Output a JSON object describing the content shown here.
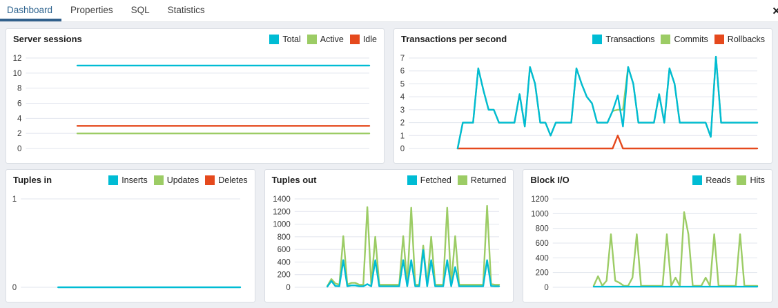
{
  "tabs": {
    "items": [
      {
        "label": "Dashboard",
        "active": true
      },
      {
        "label": "Properties",
        "active": false
      },
      {
        "label": "SQL",
        "active": false
      },
      {
        "label": "Statistics",
        "active": false
      }
    ],
    "close_icon": "✕"
  },
  "colors": {
    "cyan": "#00bcd4",
    "green": "#9ccc65",
    "orange": "#e5491d",
    "active_tab": "#31608c",
    "gridline": "#e1e4ed",
    "panel_bg": "#ffffff",
    "page_bg": "#edeff3"
  },
  "panels": [
    {
      "title": "Server sessions",
      "legend": [
        {
          "label": "Total",
          "color": "cyan"
        },
        {
          "label": "Active",
          "color": "green"
        },
        {
          "label": "Idle",
          "color": "orange"
        }
      ]
    },
    {
      "title": "Transactions per second",
      "legend": [
        {
          "label": "Transactions",
          "color": "cyan"
        },
        {
          "label": "Commits",
          "color": "green"
        },
        {
          "label": "Rollbacks",
          "color": "orange"
        }
      ]
    },
    {
      "title": "Tuples in",
      "legend": [
        {
          "label": "Inserts",
          "color": "cyan"
        },
        {
          "label": "Updates",
          "color": "green"
        },
        {
          "label": "Deletes",
          "color": "orange"
        }
      ]
    },
    {
      "title": "Tuples out",
      "legend": [
        {
          "label": "Fetched",
          "color": "cyan"
        },
        {
          "label": "Returned",
          "color": "green"
        }
      ]
    },
    {
      "title": "Block I/O",
      "legend": [
        {
          "label": "Reads",
          "color": "cyan"
        },
        {
          "label": "Hits",
          "color": "green"
        }
      ]
    }
  ],
  "chart_data": [
    {
      "type": "line",
      "title": "Server sessions",
      "ylim": [
        0,
        12
      ],
      "yticks": [
        12,
        10,
        8,
        6,
        4,
        2,
        0
      ],
      "x_start_frac": 0.15,
      "grid": true,
      "legend_position": "top-right",
      "series": [
        {
          "name": "Total",
          "color": "cyan",
          "values": [
            11,
            11
          ]
        },
        {
          "name": "Active",
          "color": "green",
          "values": [
            2,
            2
          ]
        },
        {
          "name": "Idle",
          "color": "orange",
          "values": [
            3,
            3
          ]
        }
      ]
    },
    {
      "type": "line",
      "title": "Transactions per second",
      "ylim": [
        0,
        7
      ],
      "yticks": [
        7,
        6,
        5,
        4,
        3,
        2,
        1,
        0
      ],
      "x_start_frac": 0.14,
      "grid": true,
      "legend_position": "top-right",
      "series": [
        {
          "name": "Commits",
          "color": "green",
          "values": [
            0,
            2,
            2,
            2,
            6.2,
            4.5,
            3,
            3,
            2,
            2,
            2,
            2,
            4.2,
            1.7,
            6.3,
            5,
            2,
            2,
            1,
            2,
            2,
            2,
            2,
            6.2,
            5,
            4,
            3.5,
            2,
            2,
            2,
            2.9,
            3,
            3,
            6.3,
            5,
            2,
            2,
            2,
            2,
            4.2,
            2,
            6.2,
            5,
            2,
            2,
            2,
            2,
            2,
            2,
            0.9,
            7.1,
            2,
            2,
            2,
            2,
            2,
            2,
            2,
            2
          ]
        },
        {
          "name": "Rollbacks",
          "color": "orange",
          "values": [
            0,
            0,
            0,
            0,
            0,
            0,
            0,
            0,
            0,
            0,
            0,
            0,
            0,
            0,
            0,
            0,
            0,
            0,
            0,
            0,
            0,
            0,
            0,
            0,
            0,
            0,
            0,
            0,
            0,
            0,
            0,
            1,
            0,
            0,
            0,
            0,
            0,
            0,
            0,
            0,
            0,
            0,
            0,
            0,
            0,
            0,
            0,
            0,
            0,
            0,
            0,
            0,
            0,
            0,
            0,
            0,
            0,
            0,
            0
          ]
        },
        {
          "name": "Transactions",
          "color": "cyan",
          "values": [
            0,
            2,
            2,
            2,
            6.2,
            4.5,
            3,
            3,
            2,
            2,
            2,
            2,
            4.2,
            1.7,
            6.3,
            5,
            2,
            2,
            1,
            2,
            2,
            2,
            2,
            6.2,
            5,
            4,
            3.5,
            2,
            2,
            2,
            2.9,
            4.1,
            1.7,
            6.3,
            5,
            2,
            2,
            2,
            2,
            4.2,
            2,
            6.2,
            5,
            2,
            2,
            2,
            2,
            2,
            2,
            0.9,
            7.1,
            2,
            2,
            2,
            2,
            2,
            2,
            2,
            2
          ]
        }
      ]
    },
    {
      "type": "line",
      "title": "Tuples in",
      "ylim": [
        0,
        1
      ],
      "yticks": [
        1,
        0
      ],
      "x_start_frac": 0.17,
      "grid": true,
      "legend_position": "top-right",
      "series": [
        {
          "name": "Updates",
          "color": "green",
          "values": []
        },
        {
          "name": "Deletes",
          "color": "orange",
          "values": []
        },
        {
          "name": "Inserts",
          "color": "cyan",
          "values": [
            0,
            0
          ]
        }
      ]
    },
    {
      "type": "line",
      "title": "Tuples out",
      "ylim": [
        0,
        1400
      ],
      "yticks": [
        1400,
        1200,
        1000,
        800,
        600,
        400,
        200,
        0
      ],
      "x_start_frac": 0.16,
      "grid": true,
      "legend_position": "top-right",
      "series": [
        {
          "name": "Returned",
          "color": "green",
          "values": [
            20,
            130,
            60,
            40,
            810,
            40,
            70,
            70,
            40,
            40,
            1270,
            40,
            800,
            40,
            40,
            40,
            40,
            40,
            40,
            810,
            40,
            1260,
            40,
            40,
            660,
            40,
            800,
            40,
            40,
            40,
            1260,
            40,
            810,
            40,
            40,
            40,
            40,
            40,
            40,
            40,
            1290,
            50,
            40,
            40
          ]
        },
        {
          "name": "Fetched",
          "color": "cyan",
          "values": [
            10,
            100,
            20,
            15,
            430,
            15,
            30,
            30,
            15,
            15,
            50,
            15,
            430,
            15,
            15,
            15,
            15,
            15,
            15,
            430,
            15,
            430,
            15,
            15,
            590,
            15,
            430,
            15,
            15,
            15,
            430,
            15,
            320,
            15,
            15,
            15,
            15,
            15,
            15,
            15,
            430,
            20,
            15,
            15
          ]
        }
      ]
    },
    {
      "type": "line",
      "title": "Block I/O",
      "ylim": [
        0,
        1200
      ],
      "yticks": [
        1200,
        1000,
        800,
        600,
        400,
        200,
        0
      ],
      "x_start_frac": 0.2,
      "grid": true,
      "legend_position": "top-right",
      "series": [
        {
          "name": "Hits",
          "color": "green",
          "values": [
            20,
            150,
            20,
            90,
            720,
            90,
            60,
            20,
            20,
            130,
            720,
            20,
            20,
            20,
            20,
            20,
            20,
            720,
            20,
            130,
            20,
            1020,
            720,
            20,
            20,
            20,
            130,
            20,
            720,
            20,
            20,
            20,
            20,
            20,
            720,
            20,
            20,
            20,
            20
          ]
        },
        {
          "name": "Reads",
          "color": "cyan",
          "values": [
            8,
            8
          ]
        }
      ]
    }
  ]
}
